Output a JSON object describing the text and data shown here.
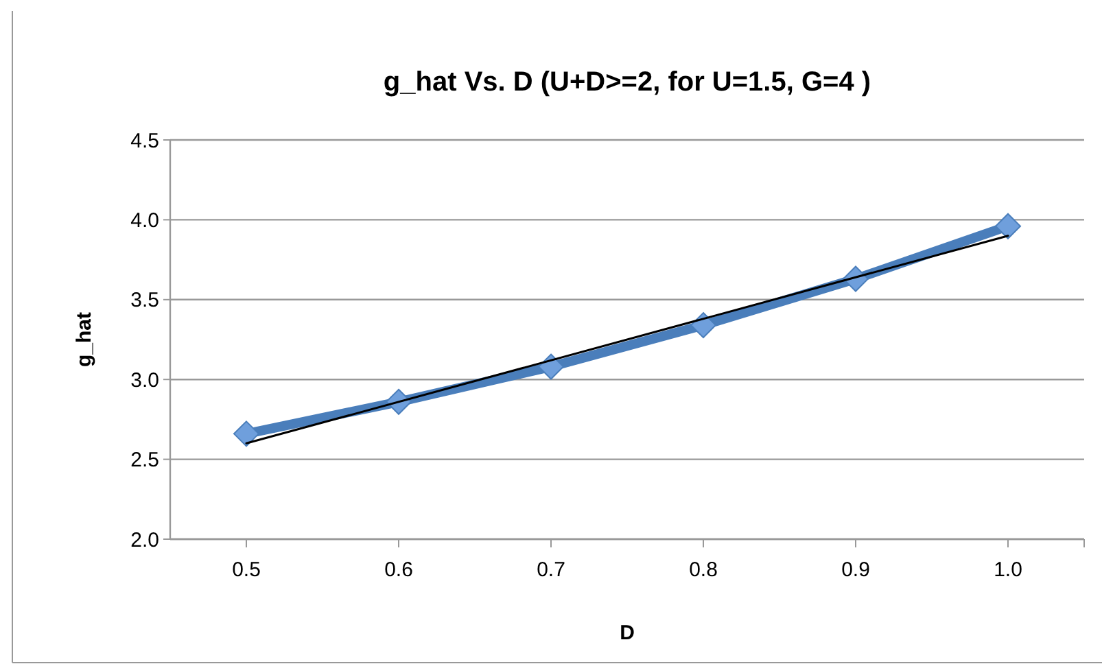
{
  "chart_data": {
    "type": "line",
    "title": "g_hat Vs. D (U+D>=2, for U=1.5, G=4 )",
    "xlabel": "D",
    "ylabel": "g_hat",
    "x": [
      0.5,
      0.6,
      0.7,
      0.8,
      0.9,
      1.0
    ],
    "series": [
      {
        "color": "#4a7ebb",
        "values": [
          2.66,
          2.86,
          3.08,
          3.34,
          3.63,
          3.96
        ],
        "marker": "diamond"
      },
      {
        "type": "line",
        "color": "#000000",
        "x": [
          0.5,
          1.0
        ],
        "values": [
          2.6,
          3.9
        ],
        "marker": "none"
      }
    ],
    "xlim": [
      0.45,
      1.05
    ],
    "xticks": [
      {
        "value": 0.5,
        "label": "0.5"
      },
      {
        "value": 0.6,
        "label": "0.6"
      },
      {
        "value": 0.7,
        "label": "0.7"
      },
      {
        "value": 0.8,
        "label": "0.8"
      },
      {
        "value": 0.9,
        "label": "0.9"
      },
      {
        "value": 1.0,
        "label": "1.0"
      }
    ],
    "ylim": [
      2.0,
      4.5
    ],
    "yticks": [
      {
        "value": 2.0,
        "label": "2.0"
      },
      {
        "value": 2.5,
        "label": "2.5"
      },
      {
        "value": 3.0,
        "label": "3.0"
      },
      {
        "value": 3.5,
        "label": "3.5"
      },
      {
        "value": 4.0,
        "label": "4.0"
      },
      {
        "value": 4.5,
        "label": "4.5"
      }
    ],
    "grid": "y"
  }
}
